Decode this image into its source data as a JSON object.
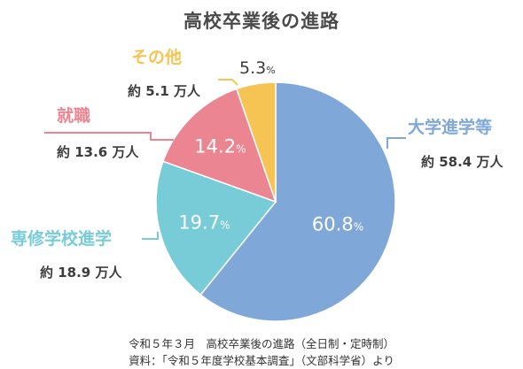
{
  "chart_data": {
    "type": "pie",
    "title": "高校卒業後の進路",
    "unit": "%",
    "slices": [
      {
        "label": "大学進学等",
        "value": 60.8,
        "count": "約 58.4 万人",
        "color": "#7fa8d8"
      },
      {
        "label": "専修学校進学",
        "value": 19.7,
        "count": "約 18.9 万人",
        "color": "#78ccd8"
      },
      {
        "label": "就職",
        "value": 14.2,
        "count": "約 13.6 万人",
        "color": "#ec8592"
      },
      {
        "label": "その他",
        "value": 5.3,
        "count": "約 5.1 万人",
        "color": "#f5c452"
      }
    ],
    "notes": [
      "令和５年３月　高校卒業後の進路（全日制・定時制）",
      "資料：「令和５年度学校基本調査」（文部科学省）より"
    ]
  }
}
